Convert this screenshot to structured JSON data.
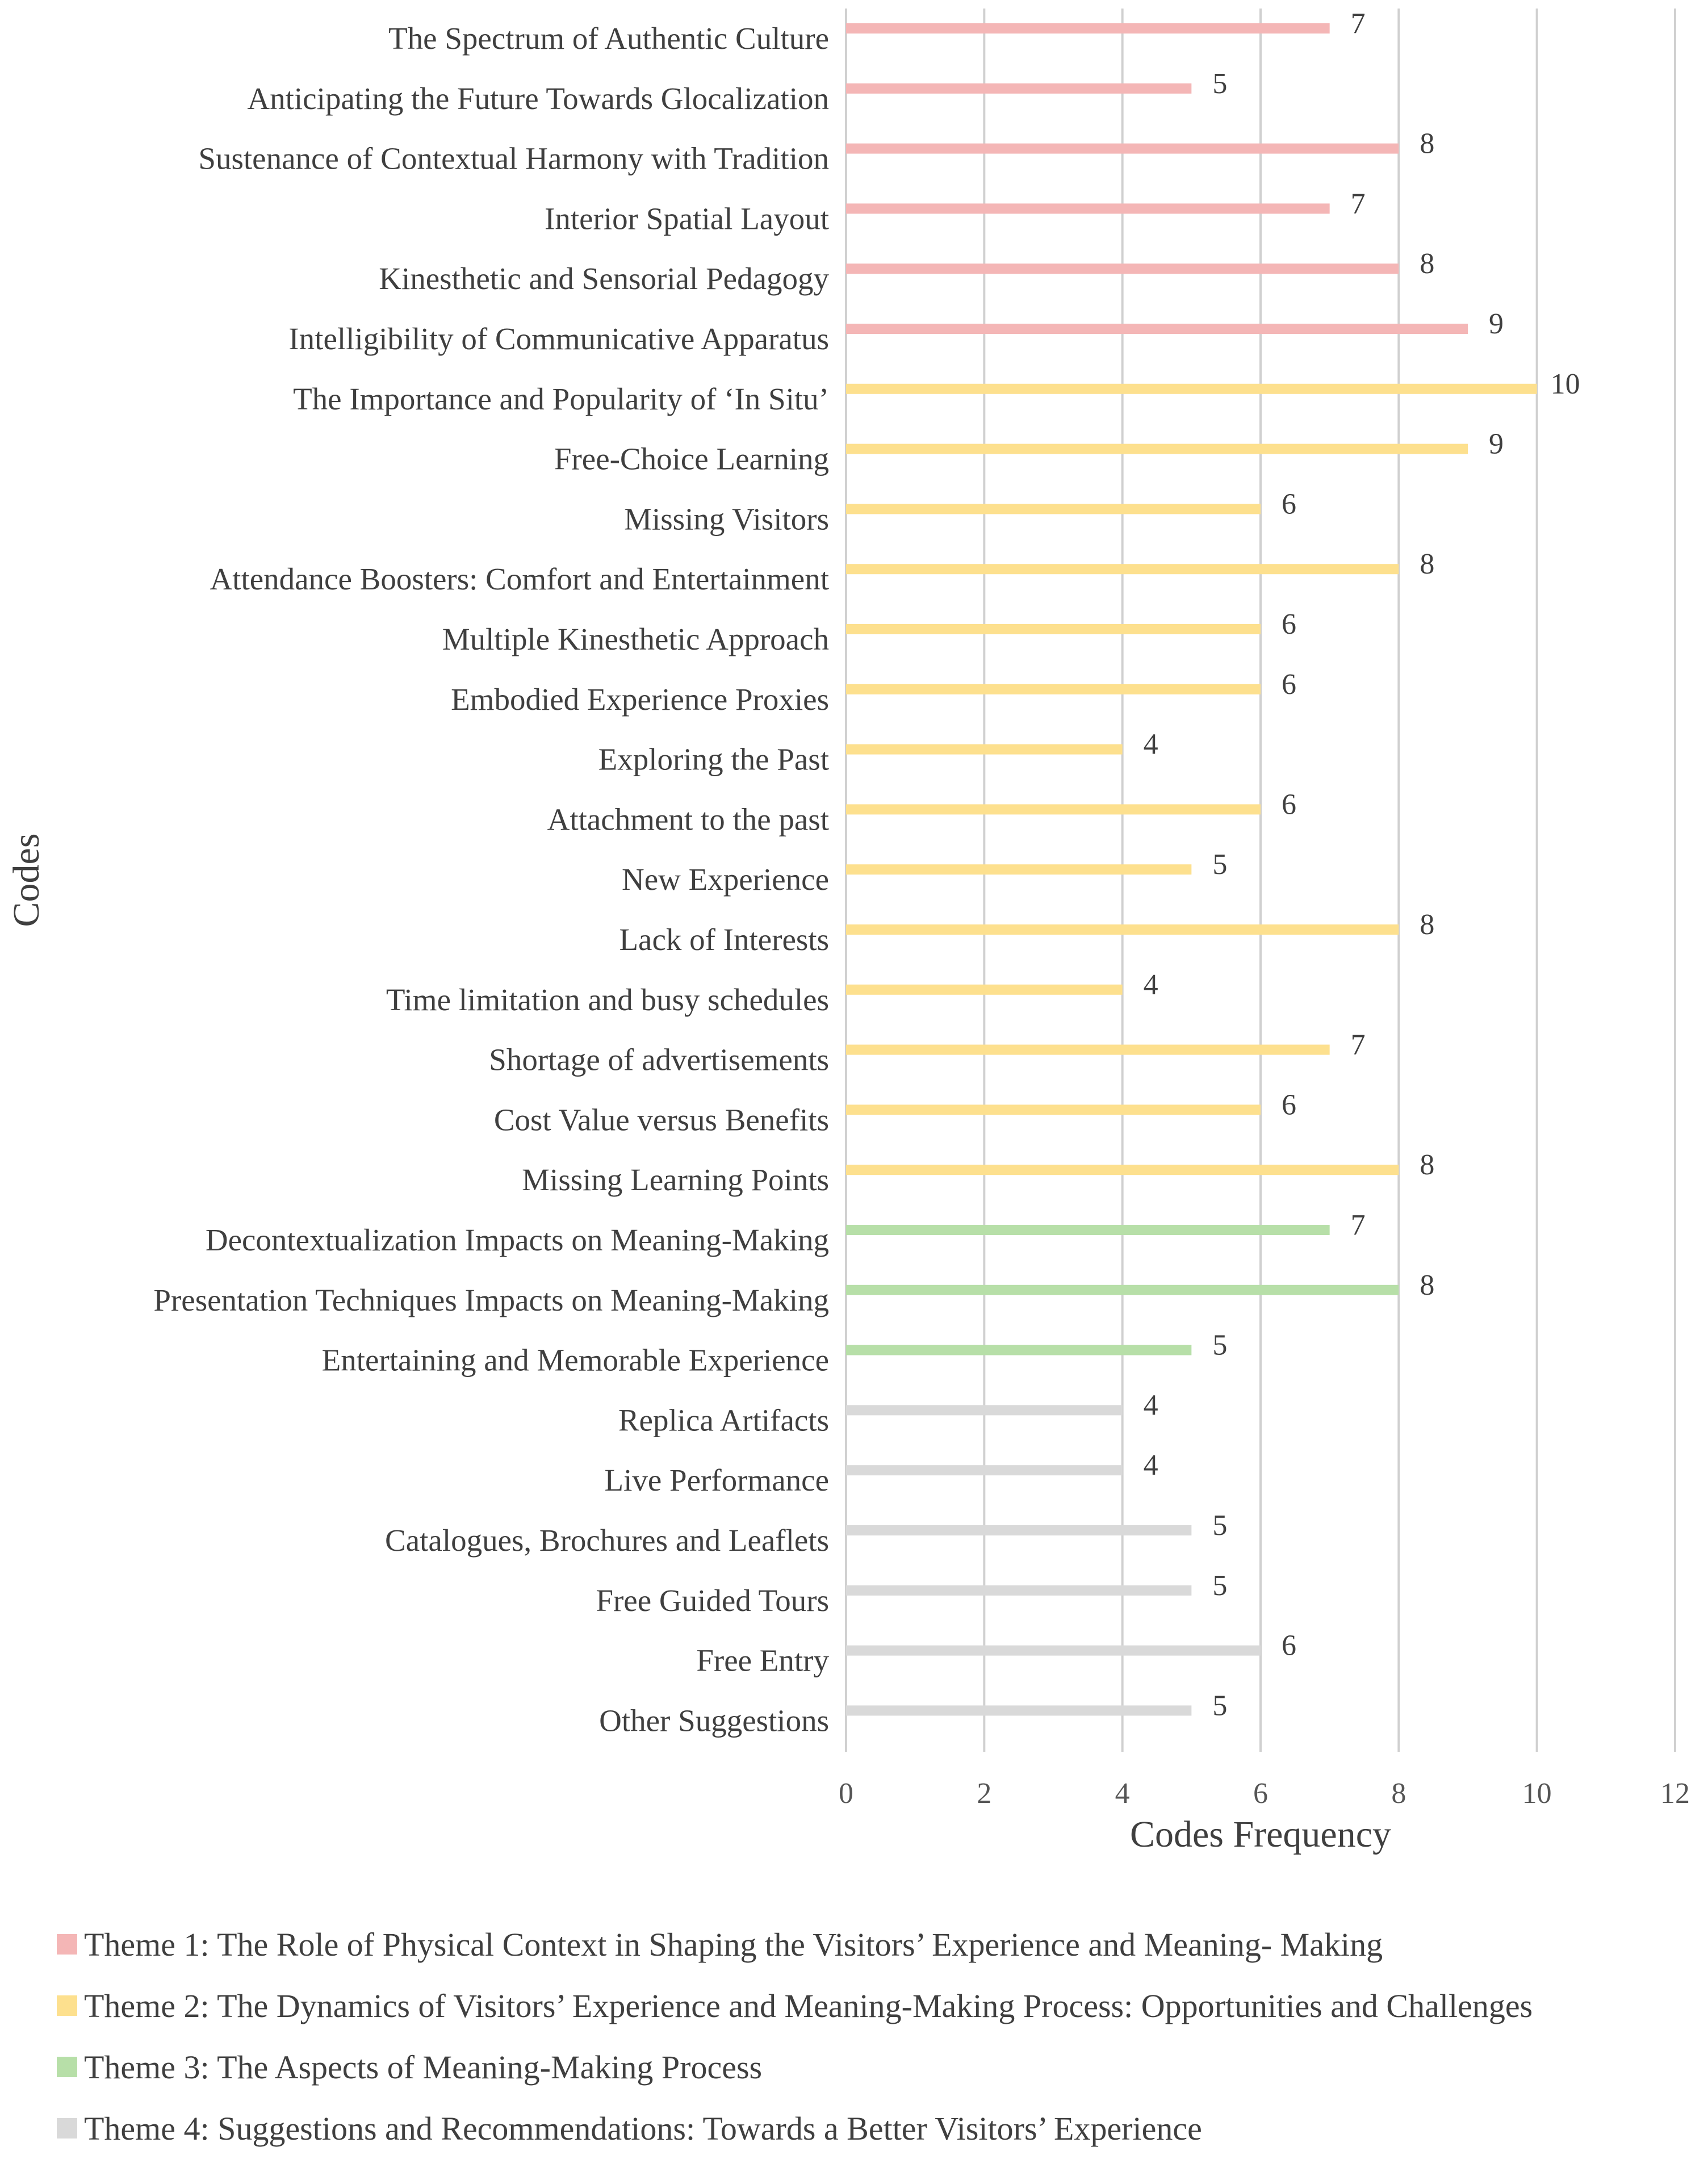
{
  "chart_data": {
    "type": "bar",
    "orientation": "horizontal",
    "xlabel": "Codes Frequency",
    "ylabel": "Codes",
    "xlim": [
      0,
      12
    ],
    "xticks": [
      0,
      2,
      4,
      6,
      8,
      10,
      12
    ],
    "grid": true,
    "legend_position": "bottom",
    "categories": [
      "The Spectrum of Authentic Culture",
      "Anticipating the Future Towards Glocalization",
      "Sustenance of Contextual Harmony with Tradition",
      "Interior Spatial Layout",
      "Kinesthetic and Sensorial Pedagogy",
      "Intelligibility of Communicative Apparatus",
      "The Importance and Popularity of ‘In Situ’",
      "Free-Choice Learning",
      "Missing Visitors",
      "Attendance Boosters: Comfort and Entertainment",
      "Multiple Kinesthetic Approach",
      "Embodied Experience Proxies",
      "Exploring the Past",
      "Attachment to the past",
      "New Experience",
      "Lack of Interests",
      "Time limitation and busy schedules",
      "Shortage of advertisements",
      "Cost Value versus Benefits",
      "Missing Learning Points",
      "Decontextualization Impacts on Meaning-Making",
      "Presentation Techniques Impacts on Meaning-Making",
      "Entertaining and Memorable Experience",
      "Replica Artifacts",
      "Live Performance",
      "Catalogues, Brochures and Leaflets",
      "Free Guided Tours",
      "Free Entry",
      "Other Suggestions"
    ],
    "values": [
      7,
      5,
      8,
      7,
      8,
      9,
      10,
      9,
      6,
      8,
      6,
      6,
      4,
      6,
      5,
      8,
      4,
      7,
      6,
      8,
      7,
      8,
      5,
      4,
      4,
      5,
      5,
      6,
      5
    ],
    "themes": [
      1,
      1,
      1,
      1,
      1,
      1,
      2,
      2,
      2,
      2,
      2,
      2,
      2,
      2,
      2,
      2,
      2,
      2,
      2,
      2,
      3,
      3,
      3,
      4,
      4,
      4,
      4,
      4,
      4
    ],
    "series": [
      {
        "name": "Theme 1:  The Role of Physical Context in Shaping the Visitors’ Experience and Meaning-  Making",
        "color": "#f4b6b6"
      },
      {
        "name": "Theme 2: The Dynamics of Visitors’ Experience and Meaning-Making  Process: Opportunities and Challenges",
        "color": "#fde08e"
      },
      {
        "name": "Theme 3: The Aspects of Meaning-Making Process",
        "color": "#b7dfa8"
      },
      {
        "name": "Theme 4: Suggestions and Recommendations: Towards a Better Visitors’ Experience",
        "color": "#d9d9d9"
      }
    ]
  },
  "colors": {
    "grid": "#d0d0d0",
    "text": "#3f3f3f"
  }
}
